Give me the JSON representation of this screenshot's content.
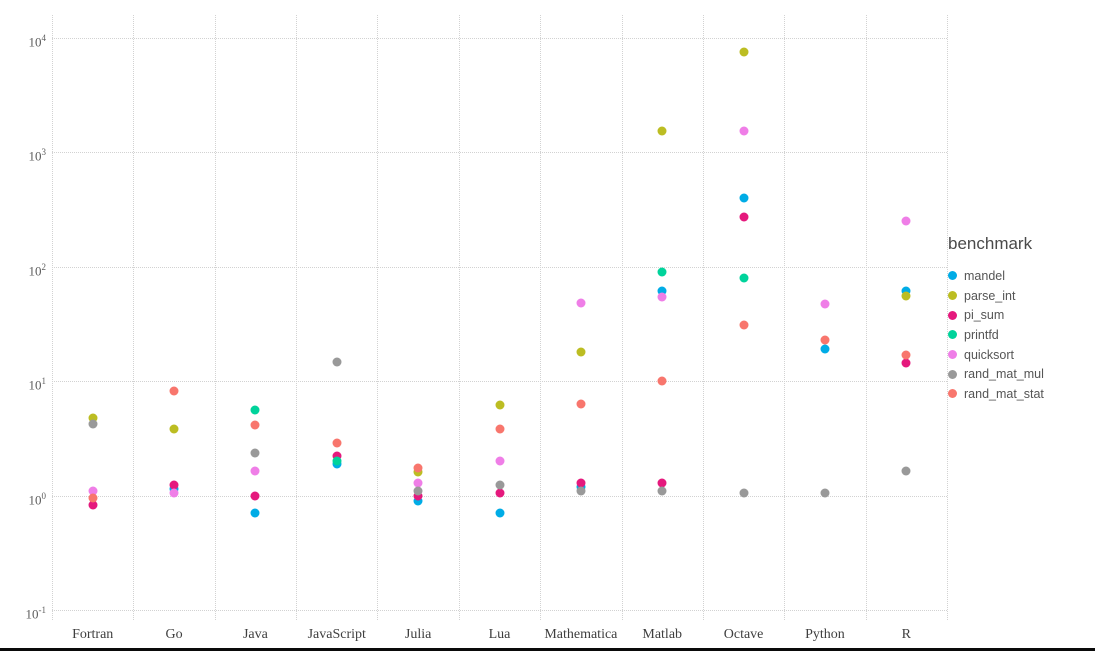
{
  "chart_data": {
    "type": "scatter",
    "legend_title": "benchmark",
    "y_scale": "log10",
    "ylim": [
      0.1,
      10000
    ],
    "y_tick_exponents": [
      4,
      3,
      2,
      1,
      0,
      -1
    ],
    "grid": "dotted",
    "legend_position": "right",
    "x_categories": [
      "Fortran",
      "Go",
      "Java",
      "JavaScript",
      "Julia",
      "Lua",
      "Mathematica",
      "Matlab",
      "Octave",
      "Python",
      "R"
    ],
    "series": [
      {
        "name": "mandel",
        "color": "#00ACE6",
        "values": [
          null,
          1.15,
          0.7,
          1.9,
          0.9,
          0.7,
          1.2,
          62,
          400,
          19,
          62
        ]
      },
      {
        "name": "parse_int",
        "color": "#BCBD22",
        "values": [
          4.8,
          3.8,
          null,
          null,
          1.6,
          6.2,
          18,
          1550,
          7600,
          null,
          56
        ]
      },
      {
        "name": "pi_sum",
        "color": "#E5197D",
        "values": [
          0.82,
          1.25,
          1.0,
          2.2,
          1.0,
          1.05,
          1.3,
          1.3,
          270,
          null,
          14.5
        ]
      },
      {
        "name": "printfd",
        "color": "#00D39B",
        "values": [
          null,
          null,
          5.6,
          2.0,
          null,
          null,
          null,
          90,
          80,
          null,
          null
        ]
      },
      {
        "name": "quicksort",
        "color": "#EF7EE7",
        "values": [
          1.1,
          1.05,
          1.65,
          null,
          1.3,
          2.0,
          48,
          55,
          1550,
          47,
          250
        ]
      },
      {
        "name": "rand_mat_mul",
        "color": "#999999",
        "values": [
          4.2,
          null,
          2.35,
          14.6,
          1.1,
          1.25,
          1.1,
          1.1,
          1.05,
          1.05,
          1.65
        ]
      },
      {
        "name": "rand_mat_stat",
        "color": "#F8766D",
        "values": [
          0.95,
          8.2,
          4.1,
          2.9,
          1.75,
          3.8,
          6.3,
          10,
          31,
          23,
          17
        ]
      }
    ]
  }
}
